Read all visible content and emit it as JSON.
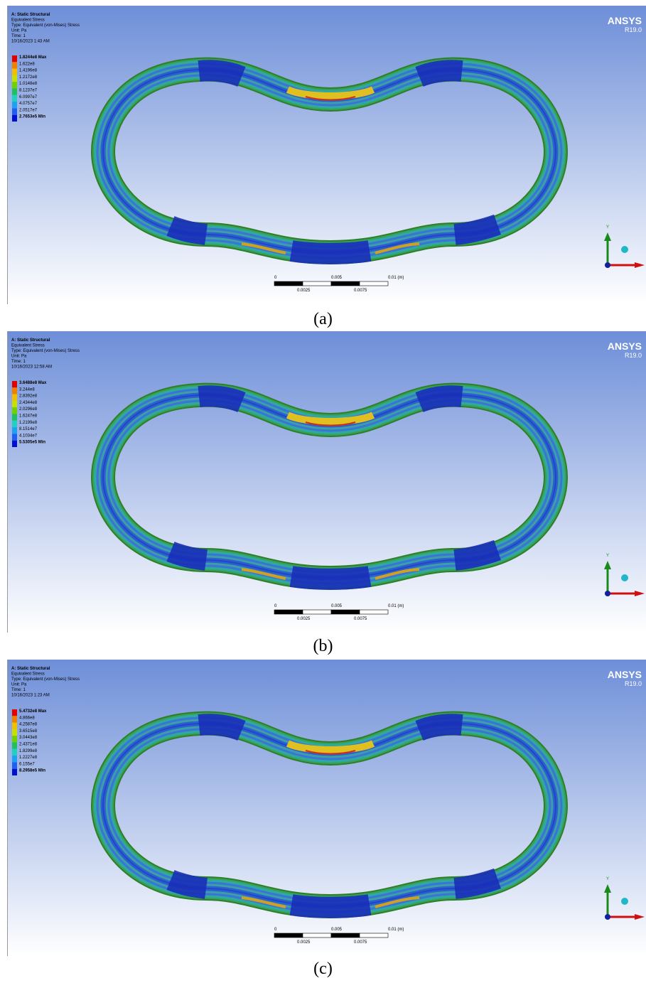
{
  "panels": [
    {
      "caption": "(a)",
      "header": [
        "A: Static Structural",
        "Equivalent Stress",
        "Type: Equivalent (von-Mises) Stress",
        "Unit: Pa",
        "Time: 1",
        "10/16/2023 1:43 AM"
      ],
      "legend": [
        "1.8244e8 Max",
        "1.622e8",
        "1.4196e8",
        "1.2172e8",
        "1.0148e8",
        "8.1237e7",
        "6.0997e7",
        "4.0757e7",
        "2.0517e7",
        "2.7653e5 Min"
      ],
      "logo": "ANSYS",
      "version": "R19.0",
      "scale_bar": {
        "top": [
          "0",
          "0.005",
          "0.01 (m)"
        ],
        "bottom": [
          "0.0025",
          "0.0075"
        ]
      },
      "axis_label": "Y"
    },
    {
      "caption": "(b)",
      "header": [
        "A: Static Structural",
        "Equivalent Stress",
        "Type: Equivalent (von-Mises) Stress",
        "Unit: Pa",
        "Time: 1",
        "10/16/2023 12:58 AM"
      ],
      "legend": [
        "3.6488e8 Max",
        "3.244e8",
        "2.8392e8",
        "2.4344e8",
        "2.0296e8",
        "1.6247e8",
        "1.2199e8",
        "8.1514e7",
        "4.1034e7",
        "5.5305e5 Min"
      ],
      "logo": "ANSYS",
      "version": "R19.0",
      "scale_bar": {
        "top": [
          "0",
          "0.005",
          "0.01 (m)"
        ],
        "bottom": [
          "0.0025",
          "0.0075"
        ]
      },
      "axis_label": "Y"
    },
    {
      "caption": "(c)",
      "header": [
        "A: Static Structural",
        "Equivalent Stress",
        "Type: Equivalent (von-Mises) Stress",
        "Unit: Pa",
        "Time: 1",
        "10/16/2023 1:23 AM"
      ],
      "legend": [
        "5.4732e8 Max",
        "4.866e8",
        "4.2587e8",
        "3.6515e8",
        "3.0443e8",
        "2.4371e8",
        "1.8299e8",
        "1.2227e8",
        "6.155e7",
        "8.2958e5 Min"
      ],
      "logo": "ANSYS",
      "version": "R19.0",
      "scale_bar": {
        "top": [
          "0",
          "0.005",
          "0.01 (m)"
        ],
        "bottom": [
          "0.0025",
          "0.0075"
        ]
      },
      "axis_label": "Y"
    }
  ]
}
